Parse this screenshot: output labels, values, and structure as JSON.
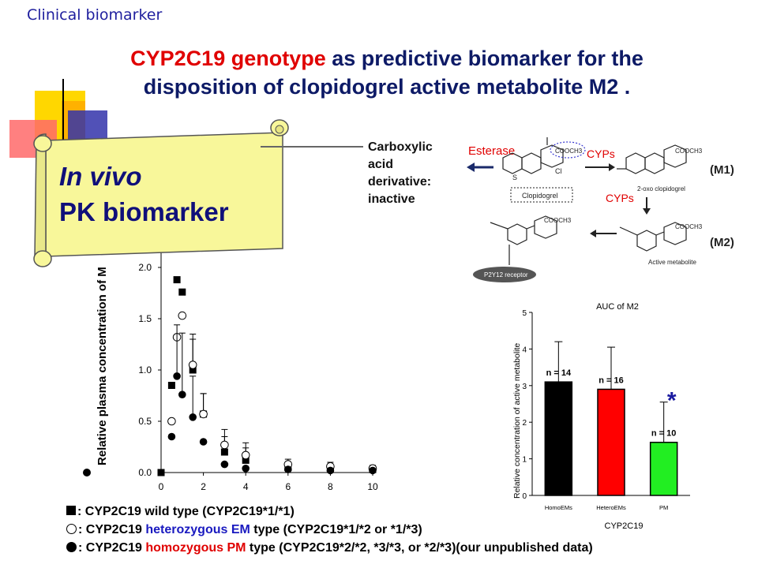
{
  "header": {
    "topic": "Clinical biomarker",
    "title_red1": "CYP2C19 genotype",
    "title_rest1": " as predictive biomarker for the",
    "title_line2": "disposition of clopidogrel active metabolite M2 ."
  },
  "scroll": {
    "line1": "In vivo",
    "line2": "PK biomarker"
  },
  "pathway": {
    "carboxylic": [
      "Carboxylic",
      "acid",
      "derivative:",
      "inactive"
    ],
    "esterase": "Esterase",
    "cyps1": "CYPs",
    "cyps2": "CYPs",
    "clopidogrel": "Clopidogrel",
    "oxo": "2-oxo clopidogrel",
    "active": "Active metabolite",
    "receptor": "P2Y12 receptor",
    "m1": "(M1)",
    "m2": "(M2)",
    "cooch3": "COOCH3"
  },
  "legend": {
    "wild_prefix": ": CYP2C19 wild type (CYP2C19*1/*1)",
    "het_prefix": ": CYP2C19 ",
    "het_colored": "heterozygous EM",
    "het_suffix": " type (CYP2C19*1/*2 or *1/*3)",
    "hom_prefix": ": CYP2C19 ",
    "hom_colored": "homozygous PM",
    "hom_suffix": " type (CYP2C19*2/*2, *3/*3, or *2/*3)(our unpublished data)"
  },
  "colors": {
    "title_red": "#e00000",
    "title_blue": "#0d1a66",
    "scroll_fill": "#f8f79a",
    "bar_homo": "#000000",
    "bar_hetero": "#ff0000",
    "bar_pm": "#22ee22",
    "asterisk": "#1a1aa0"
  },
  "chart_data": [
    {
      "type": "scatter",
      "title": "",
      "xlabel": "",
      "ylabel": "Relative plasma concentration of M",
      "xlim": [
        0,
        10
      ],
      "ylim": [
        0,
        2.0
      ],
      "x_ticks": [
        "0",
        "2",
        "4",
        "6",
        "8",
        "10"
      ],
      "y_ticks": [
        "0.0",
        "0.5",
        "1.0",
        "1.5",
        "2.0"
      ],
      "series": [
        {
          "marker": "filled-square",
          "x": [
            0,
            0.5,
            0.75,
            1.0,
            1.5,
            2.0,
            3.0,
            4.0,
            6.0,
            8.0,
            10.0
          ],
          "y": [
            0.0,
            0.85,
            1.88,
            1.76,
            1.0,
            0.57,
            0.2,
            0.12,
            0.05,
            0.04,
            0.03
          ],
          "err": [
            0,
            0,
            0,
            0,
            0.3,
            0.2,
            0.15,
            0.12,
            0.05,
            0.04,
            0.03
          ]
        },
        {
          "marker": "open-circle",
          "x": [
            0.5,
            0.75,
            1.0,
            1.5,
            2.0,
            3.0,
            4.0,
            6.0,
            8.0,
            10.0
          ],
          "y": [
            0.5,
            1.32,
            1.53,
            1.05,
            0.57,
            0.27,
            0.17,
            0.08,
            0.06,
            0.04
          ],
          "err": [
            0,
            0,
            0,
            0.3,
            0.2,
            0.15,
            0.12,
            0.05,
            0.04,
            0.03
          ]
        },
        {
          "marker": "filled-circle",
          "x": [
            0.5,
            0.75,
            1.0,
            1.5,
            2.0,
            3.0,
            4.0,
            6.0,
            8.0,
            10.0
          ],
          "y": [
            0.35,
            0.94,
            0.76,
            0.54,
            0.3,
            0.08,
            0.04,
            0.03,
            0.02,
            0.02
          ],
          "err": [
            0,
            0.5,
            0.6,
            0.4,
            0,
            0,
            0,
            0,
            0,
            0
          ]
        }
      ]
    },
    {
      "type": "bar",
      "title": "AUC of M2",
      "xlabel": "CYP2C19",
      "ylabel": "Relative concentration of active metabolite",
      "categories": [
        "HomoEMs",
        "HeteroEMs",
        "PM"
      ],
      "values": [
        3.1,
        2.9,
        1.45
      ],
      "errors": [
        1.1,
        1.15,
        1.1
      ],
      "n_labels": [
        "n = 14",
        "n = 16",
        "n = 10"
      ],
      "ylim": [
        0,
        5
      ],
      "y_ticks": [
        "0",
        "1",
        "2",
        "3",
        "4",
        "5"
      ],
      "annotation": "*"
    }
  ]
}
